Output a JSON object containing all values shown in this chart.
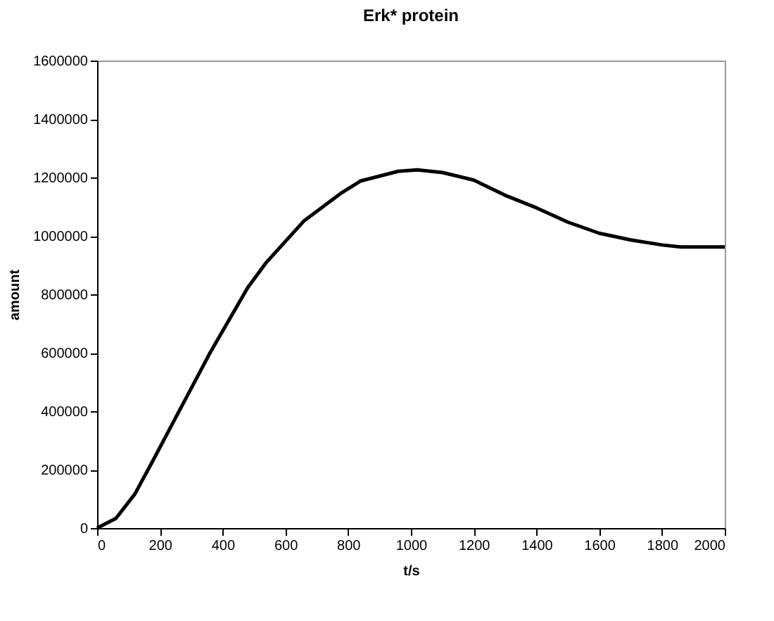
{
  "chart_data": {
    "type": "line",
    "title": "Erk* protein",
    "xlabel": "t/s",
    "ylabel": "amount",
    "xlim": [
      0,
      2000
    ],
    "xticks": [
      0,
      200,
      400,
      600,
      800,
      1000,
      1200,
      1400,
      1600,
      1800,
      2000
    ],
    "ylim": [
      0,
      1600000
    ],
    "yticks": [
      0,
      200000,
      400000,
      600000,
      800000,
      1000000,
      1200000,
      1400000,
      1600000
    ],
    "grid": false,
    "legend": false,
    "marker": "none",
    "line_style": "solid",
    "x": [
      0,
      60,
      120,
      180,
      240,
      360,
      480,
      540,
      660,
      780,
      840,
      960,
      1020,
      1100,
      1200,
      1300,
      1400,
      1500,
      1600,
      1700,
      1800,
      1860,
      2000
    ],
    "series": [
      {
        "color": "#000000",
        "values": [
          0,
          33000,
          116000,
          235000,
          357000,
          600000,
          823000,
          910000,
          1052000,
          1148000,
          1188000,
          1221000,
          1226000,
          1217000,
          1191000,
          1139000,
          1096000,
          1047000,
          1009000,
          986000,
          969000,
          962000,
          962000
        ]
      }
    ]
  }
}
